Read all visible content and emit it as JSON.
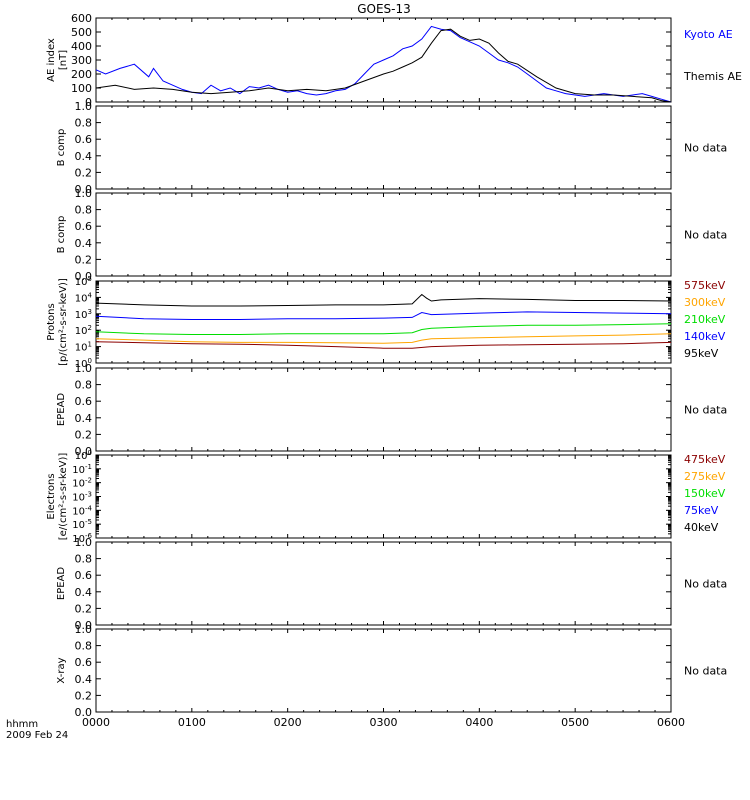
{
  "title": "GOES-13",
  "time_axis": {
    "label": "hhmm",
    "date": "2009 Feb 24",
    "ticks": [
      "0000",
      "0100",
      "0200",
      "0300",
      "0400",
      "0500",
      "0600"
    ]
  },
  "no_data_text": "No data",
  "colors": {
    "black": "#000000",
    "blue": "#0000ff",
    "green": "#00dd00",
    "orange": "#ffa500",
    "darkred": "#8b0000"
  },
  "chart_data": [
    {
      "type": "line",
      "id": "ae",
      "ylabel": [
        "AE index",
        "[nT]"
      ],
      "yticks": [
        "0",
        "100",
        "200",
        "300",
        "400",
        "500",
        "600"
      ],
      "ylim": [
        0,
        600
      ],
      "x_unit": "hours since 0000 UT",
      "legend": [
        {
          "name": "Kyoto AE",
          "color": "#0000ff"
        },
        {
          "name": "Themis AE",
          "color": "#000000"
        }
      ],
      "series": [
        {
          "name": "Kyoto AE",
          "color": "#0000ff",
          "x": [
            0,
            0.1,
            0.25,
            0.4,
            0.55,
            0.6,
            0.7,
            0.8,
            0.9,
            1.0,
            1.1,
            1.2,
            1.3,
            1.4,
            1.5,
            1.6,
            1.7,
            1.8,
            1.9,
            2.0,
            2.1,
            2.2,
            2.3,
            2.4,
            2.5,
            2.6,
            2.7,
            2.8,
            2.9,
            3.0,
            3.1,
            3.2,
            3.3,
            3.4,
            3.5,
            3.6,
            3.7,
            3.8,
            3.9,
            4.0,
            4.1,
            4.2,
            4.3,
            4.4,
            4.5,
            4.6,
            4.7,
            4.8,
            4.9,
            5.0,
            5.1,
            5.2,
            5.3,
            5.4,
            5.5,
            5.6,
            5.7,
            5.8,
            5.9,
            6.0
          ],
          "values": [
            230,
            200,
            240,
            270,
            180,
            240,
            150,
            120,
            90,
            70,
            60,
            120,
            80,
            100,
            60,
            110,
            100,
            120,
            90,
            70,
            80,
            60,
            50,
            60,
            80,
            90,
            130,
            200,
            270,
            300,
            330,
            380,
            400,
            450,
            540,
            520,
            510,
            460,
            430,
            400,
            350,
            300,
            280,
            250,
            200,
            150,
            100,
            80,
            60,
            50,
            40,
            50,
            60,
            50,
            40,
            50,
            60,
            40,
            20,
            0
          ]
        },
        {
          "name": "Themis AE",
          "color": "#000000",
          "x": [
            0,
            0.2,
            0.4,
            0.6,
            0.8,
            1.0,
            1.2,
            1.4,
            1.6,
            1.8,
            2.0,
            2.2,
            2.4,
            2.6,
            2.8,
            3.0,
            3.1,
            3.2,
            3.3,
            3.4,
            3.5,
            3.6,
            3.7,
            3.8,
            3.9,
            4.0,
            4.1,
            4.2,
            4.3,
            4.4,
            4.6,
            4.8,
            5.0,
            5.2,
            5.4,
            5.6,
            5.8,
            5.9,
            6.0
          ],
          "values": [
            100,
            120,
            90,
            100,
            90,
            70,
            60,
            70,
            80,
            100,
            80,
            90,
            80,
            100,
            150,
            200,
            220,
            250,
            280,
            320,
            420,
            510,
            520,
            470,
            440,
            450,
            420,
            350,
            290,
            270,
            180,
            100,
            60,
            50,
            50,
            40,
            30,
            10,
            0
          ]
        }
      ]
    },
    {
      "type": "line",
      "id": "bcomp1",
      "ylabel": [
        "B comp"
      ],
      "yticks": [
        "0.0",
        "0.2",
        "0.4",
        "0.6",
        "0.8",
        "1.0"
      ],
      "ylim": [
        0,
        1
      ],
      "status": "No data"
    },
    {
      "type": "line",
      "id": "bcomp2",
      "ylabel": [
        "B comp"
      ],
      "yticks": [
        "0.0",
        "0.2",
        "0.4",
        "0.6",
        "0.8",
        "1.0"
      ],
      "ylim": [
        0,
        1
      ],
      "status": "No data"
    },
    {
      "type": "line",
      "id": "protons",
      "ylabel": [
        "Protons",
        "[p/(cm²-s-sr-keV)]"
      ],
      "yscale": "log",
      "ylim": [
        1,
        100000
      ],
      "ytick_exponents": [
        0,
        1,
        2,
        3,
        4,
        5
      ],
      "x_unit": "hours since 0000 UT",
      "legend": [
        {
          "name": "575keV",
          "color": "#8b0000"
        },
        {
          "name": "300keV",
          "color": "#ffa500"
        },
        {
          "name": "210keV",
          "color": "#00dd00"
        },
        {
          "name": "140keV",
          "color": "#0000ff"
        },
        {
          "name": "95keV",
          "color": "#000000"
        }
      ],
      "series": [
        {
          "name": "95keV",
          "color": "#000000",
          "x": [
            0,
            0.5,
            1,
            1.5,
            2,
            2.5,
            3,
            3.3,
            3.4,
            3.45,
            3.5,
            3.6,
            4,
            4.5,
            5,
            5.5,
            6
          ],
          "values": [
            4500,
            3500,
            3000,
            3000,
            3200,
            3500,
            3500,
            4000,
            15000,
            9000,
            6000,
            7000,
            8500,
            7500,
            6500,
            6500,
            6000
          ]
        },
        {
          "name": "140keV",
          "color": "#0000ff",
          "x": [
            0,
            0.5,
            1,
            1.5,
            2,
            2.5,
            3,
            3.3,
            3.4,
            3.5,
            4,
            4.5,
            5,
            5.5,
            6
          ],
          "values": [
            700,
            500,
            450,
            450,
            500,
            500,
            550,
            600,
            1200,
            900,
            1100,
            1300,
            1200,
            1100,
            1000
          ]
        },
        {
          "name": "210keV",
          "color": "#00dd00",
          "x": [
            0,
            0.5,
            1,
            1.5,
            2,
            2.5,
            3,
            3.3,
            3.4,
            3.5,
            4,
            4.5,
            5,
            5.5,
            6
          ],
          "values": [
            80,
            60,
            55,
            55,
            60,
            60,
            60,
            70,
            110,
            130,
            170,
            200,
            200,
            220,
            250
          ]
        },
        {
          "name": "300keV",
          "color": "#ffa500",
          "x": [
            0,
            0.5,
            1,
            1.5,
            2,
            2.5,
            3,
            3.3,
            3.4,
            3.5,
            4,
            4.5,
            5,
            5.5,
            6
          ],
          "values": [
            30,
            25,
            20,
            18,
            18,
            17,
            16,
            18,
            25,
            30,
            35,
            40,
            45,
            50,
            60
          ]
        },
        {
          "name": "575keV",
          "color": "#8b0000",
          "x": [
            0,
            0.5,
            1,
            1.5,
            2,
            2.5,
            3,
            3.3,
            3.5,
            4,
            4.5,
            5,
            5.5,
            6
          ],
          "values": [
            20,
            17,
            15,
            14,
            12,
            10,
            8,
            8,
            10,
            12,
            13,
            14,
            15,
            18
          ]
        }
      ]
    },
    {
      "type": "line",
      "id": "epead1",
      "ylabel": [
        "EPEAD"
      ],
      "yticks": [
        "0.0",
        "0.2",
        "0.4",
        "0.6",
        "0.8",
        "1.0"
      ],
      "ylim": [
        0,
        1
      ],
      "status": "No data"
    },
    {
      "type": "line",
      "id": "electrons",
      "ylabel": [
        "Electrons",
        "[e/(cm²-s-sr-keV)]"
      ],
      "yscale": "log",
      "ylim": [
        1e-06,
        1
      ],
      "ytick_exponents": [
        0,
        -1,
        -2,
        -3,
        -4,
        -5,
        -6
      ],
      "legend": [
        {
          "name": "475keV",
          "color": "#8b0000"
        },
        {
          "name": "275keV",
          "color": "#ffa500"
        },
        {
          "name": "150keV",
          "color": "#00dd00"
        },
        {
          "name": "75keV",
          "color": "#0000ff"
        },
        {
          "name": "40keV",
          "color": "#000000"
        }
      ]
    },
    {
      "type": "line",
      "id": "epead2",
      "ylabel": [
        "EPEAD"
      ],
      "yticks": [
        "0.0",
        "0.2",
        "0.4",
        "0.6",
        "0.8",
        "1.0"
      ],
      "ylim": [
        0,
        1
      ],
      "status": "No data"
    },
    {
      "type": "line",
      "id": "xray",
      "ylabel": [
        "X-ray"
      ],
      "yticks": [
        "0.0",
        "0.2",
        "0.4",
        "0.6",
        "0.8",
        "1.0"
      ],
      "ylim": [
        0,
        1
      ],
      "status": "No data"
    }
  ]
}
